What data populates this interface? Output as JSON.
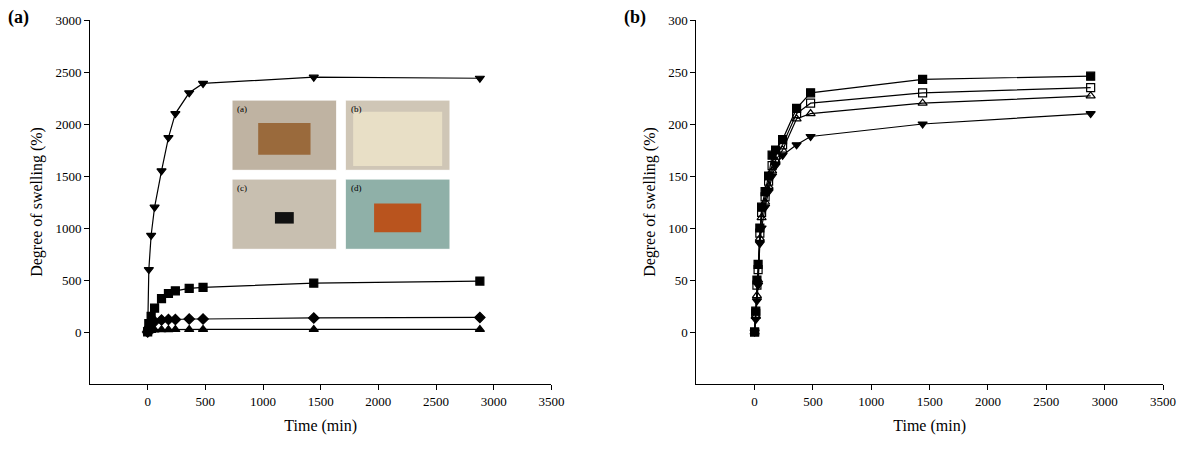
{
  "chart_data": [
    {
      "type": "line",
      "title": "(a)",
      "x_label": "Time (min)",
      "y_label": "Degree of swelling (%)",
      "x": [
        0,
        10,
        30,
        60,
        120,
        180,
        240,
        360,
        480,
        1440,
        2880
      ],
      "series": [
        {
          "marker": "triangle-down",
          "color": "#000000",
          "values": [
            0,
            600,
            930,
            1200,
            1550,
            1870,
            2100,
            2300,
            2390,
            2450,
            2440
          ]
        },
        {
          "marker": "square",
          "color": "#000000",
          "values": [
            0,
            80,
            150,
            230,
            320,
            370,
            395,
            420,
            430,
            470,
            490
          ]
        },
        {
          "marker": "diamond",
          "color": "#000000",
          "values": [
            0,
            40,
            80,
            100,
            115,
            120,
            120,
            125,
            125,
            135,
            140
          ]
        },
        {
          "marker": "triangle-up",
          "color": "#000000",
          "values": [
            0,
            10,
            15,
            20,
            22,
            23,
            24,
            24,
            25,
            25,
            25
          ]
        }
      ],
      "xlim": [
        -500,
        3500
      ],
      "xticks": [
        0,
        500,
        1000,
        1500,
        2000,
        2500,
        3000,
        3500
      ],
      "ylim": [
        -500,
        3000
      ],
      "yticks": [
        0,
        500,
        1000,
        1500,
        2000,
        2500,
        3000
      ],
      "grid": false,
      "annotations": [
        "(a)",
        "(b)",
        "(c)",
        "(d)"
      ]
    },
    {
      "type": "line",
      "title": "(b)",
      "x_label": "Time (min)",
      "y_label": "Degree of swelling (%)",
      "x": [
        0,
        10,
        20,
        30,
        45,
        60,
        90,
        120,
        150,
        180,
        240,
        360,
        480,
        1440,
        2880
      ],
      "series": [
        {
          "marker": "square",
          "color": "#000000",
          "values": [
            0,
            20,
            50,
            65,
            100,
            120,
            135,
            150,
            170,
            175,
            185,
            215,
            230,
            243,
            246
          ]
        },
        {
          "marker": "square-open",
          "color": "#000000",
          "values": [
            0,
            18,
            45,
            60,
            95,
            115,
            130,
            145,
            160,
            170,
            180,
            210,
            220,
            230,
            235
          ]
        },
        {
          "marker": "triangle-up-open",
          "color": "#000000",
          "values": [
            0,
            15,
            35,
            50,
            90,
            110,
            125,
            140,
            155,
            165,
            175,
            205,
            210,
            220,
            227
          ]
        },
        {
          "marker": "triangle-down",
          "color": "#000000",
          "values": [
            0,
            12,
            30,
            45,
            85,
            100,
            120,
            135,
            150,
            160,
            170,
            180,
            188,
            200,
            210
          ]
        }
      ],
      "xlim": [
        -500,
        3500
      ],
      "xticks": [
        0,
        500,
        1000,
        1500,
        2000,
        2500,
        3000,
        3500
      ],
      "ylim": [
        -50,
        300
      ],
      "yticks": [
        0,
        50,
        100,
        150,
        200,
        250,
        300
      ],
      "grid": false
    }
  ]
}
